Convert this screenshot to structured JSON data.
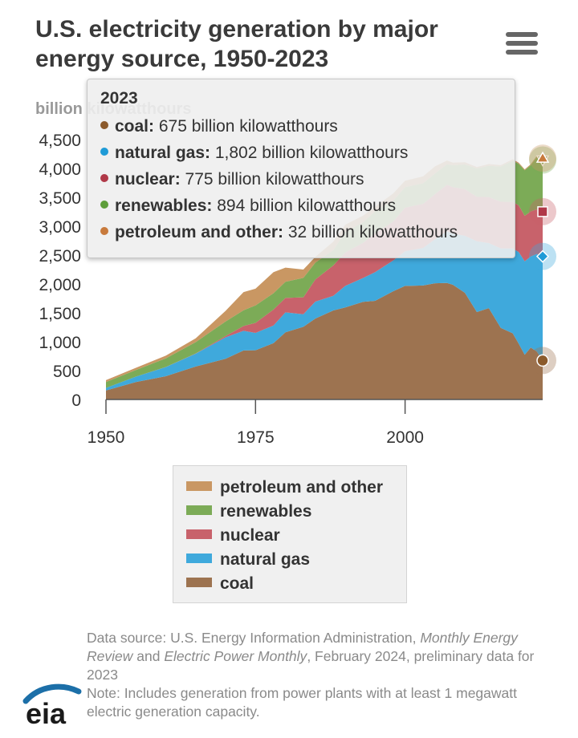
{
  "title": "U.S. electricity generation by major energy source, 1950-2023",
  "menu_icon": "hamburger-menu-icon",
  "chart_data": {
    "type": "area",
    "stacked": true,
    "ylabel": "billion kilowatthours",
    "ylim": [
      0,
      4500
    ],
    "yticks": [
      0,
      500,
      1000,
      1500,
      2000,
      2500,
      3000,
      3500,
      4000,
      4500
    ],
    "ytick_labels": [
      "0",
      "500",
      "1,000",
      "1,500",
      "2,000",
      "2,500",
      "3,000",
      "3,500",
      "4,000",
      "4,500"
    ],
    "xlim": [
      1950,
      2023
    ],
    "xticks": [
      1950,
      1975,
      2000
    ],
    "xtick_labels": [
      "1950",
      "1975",
      "2000"
    ],
    "x": [
      1950,
      1955,
      1960,
      1965,
      1970,
      1973,
      1975,
      1978,
      1980,
      1983,
      1985,
      1988,
      1990,
      1993,
      1995,
      1998,
      2000,
      2003,
      2005,
      2007,
      2008,
      2010,
      2012,
      2014,
      2016,
      2018,
      2019,
      2020,
      2021,
      2022,
      2023
    ],
    "series": [
      {
        "name": "coal",
        "color": "#9d7350",
        "values": [
          155,
          301,
          403,
          571,
          704,
          848,
          853,
          976,
          1162,
          1259,
          1402,
          1541,
          1594,
          1690,
          1709,
          1874,
          1966,
          1974,
          2013,
          2016,
          1986,
          1847,
          1514,
          1582,
          1239,
          1146,
          965,
          774,
          898,
          832,
          675
        ]
      },
      {
        "name": "natural gas",
        "color": "#3fa9dc",
        "values": [
          45,
          95,
          158,
          222,
          373,
          341,
          300,
          305,
          346,
          217,
          292,
          253,
          373,
          414,
          496,
          531,
          601,
          650,
          761,
          897,
          883,
          988,
          1226,
          1127,
          1378,
          1469,
          1586,
          1617,
          1579,
          1687,
          1802
        ]
      },
      {
        "name": "nuclear",
        "color": "#c8626b",
        "values": [
          0,
          0,
          1,
          4,
          22,
          83,
          173,
          276,
          251,
          294,
          384,
          527,
          577,
          610,
          673,
          674,
          754,
          764,
          782,
          806,
          806,
          807,
          769,
          797,
          806,
          807,
          809,
          790,
          778,
          772,
          775
        ]
      },
      {
        "name": "renewables",
        "color": "#7cab57",
        "values": [
          101,
          115,
          149,
          196,
          252,
          274,
          303,
          283,
          279,
          336,
          292,
          264,
          357,
          356,
          384,
          358,
          356,
          355,
          358,
          352,
          380,
          428,
          492,
          540,
          610,
          713,
          720,
          787,
          800,
          899,
          894
        ]
      },
      {
        "name": "petroleum and other",
        "color": "#c99763",
        "values": [
          34,
          37,
          48,
          65,
          184,
          314,
          289,
          365,
          246,
          144,
          100,
          148,
          126,
          113,
          75,
          128,
          111,
          119,
          122,
          66,
          46,
          37,
          23,
          30,
          24,
          25,
          19,
          17,
          19,
          23,
          32
        ]
      }
    ],
    "tooltip": {
      "year": "2023",
      "rows": [
        {
          "name": "coal:",
          "value": "675 billion kilowatthours",
          "color": "#8b5a2b"
        },
        {
          "name": "natural gas:",
          "value": "1,802 billion kilowatthours",
          "color": "#1f9bd7"
        },
        {
          "name": "nuclear:",
          "value": "775 billion kilowatthours",
          "color": "#b03848"
        },
        {
          "name": "renewables:",
          "value": "894 billion kilowatthours",
          "color": "#5e9e3a"
        },
        {
          "name": "petroleum and other:",
          "value": "32 billion kilowatthours",
          "color": "#c87a3c"
        }
      ]
    },
    "legend": {
      "placement": "bottom",
      "items": [
        {
          "label": "petroleum and other",
          "color": "#c99763"
        },
        {
          "label": "renewables",
          "color": "#7cab57"
        },
        {
          "label": "nuclear",
          "color": "#c8626b"
        },
        {
          "label": "natural gas",
          "color": "#3fa9dc"
        },
        {
          "label": "coal",
          "color": "#9d7350"
        }
      ]
    }
  },
  "footer": {
    "source_prefix": "Data source: U.S. Energy Information Administration, ",
    "source_pub1": "Monthly Energy Review",
    "source_and": " and ",
    "source_pub2": "Electric Power Monthly",
    "source_suffix": ", February 2024, preliminary data for 2023",
    "note": "Note: Includes generation from power plants with at least 1 megawatt electric generation capacity."
  },
  "logo_text": "eia"
}
